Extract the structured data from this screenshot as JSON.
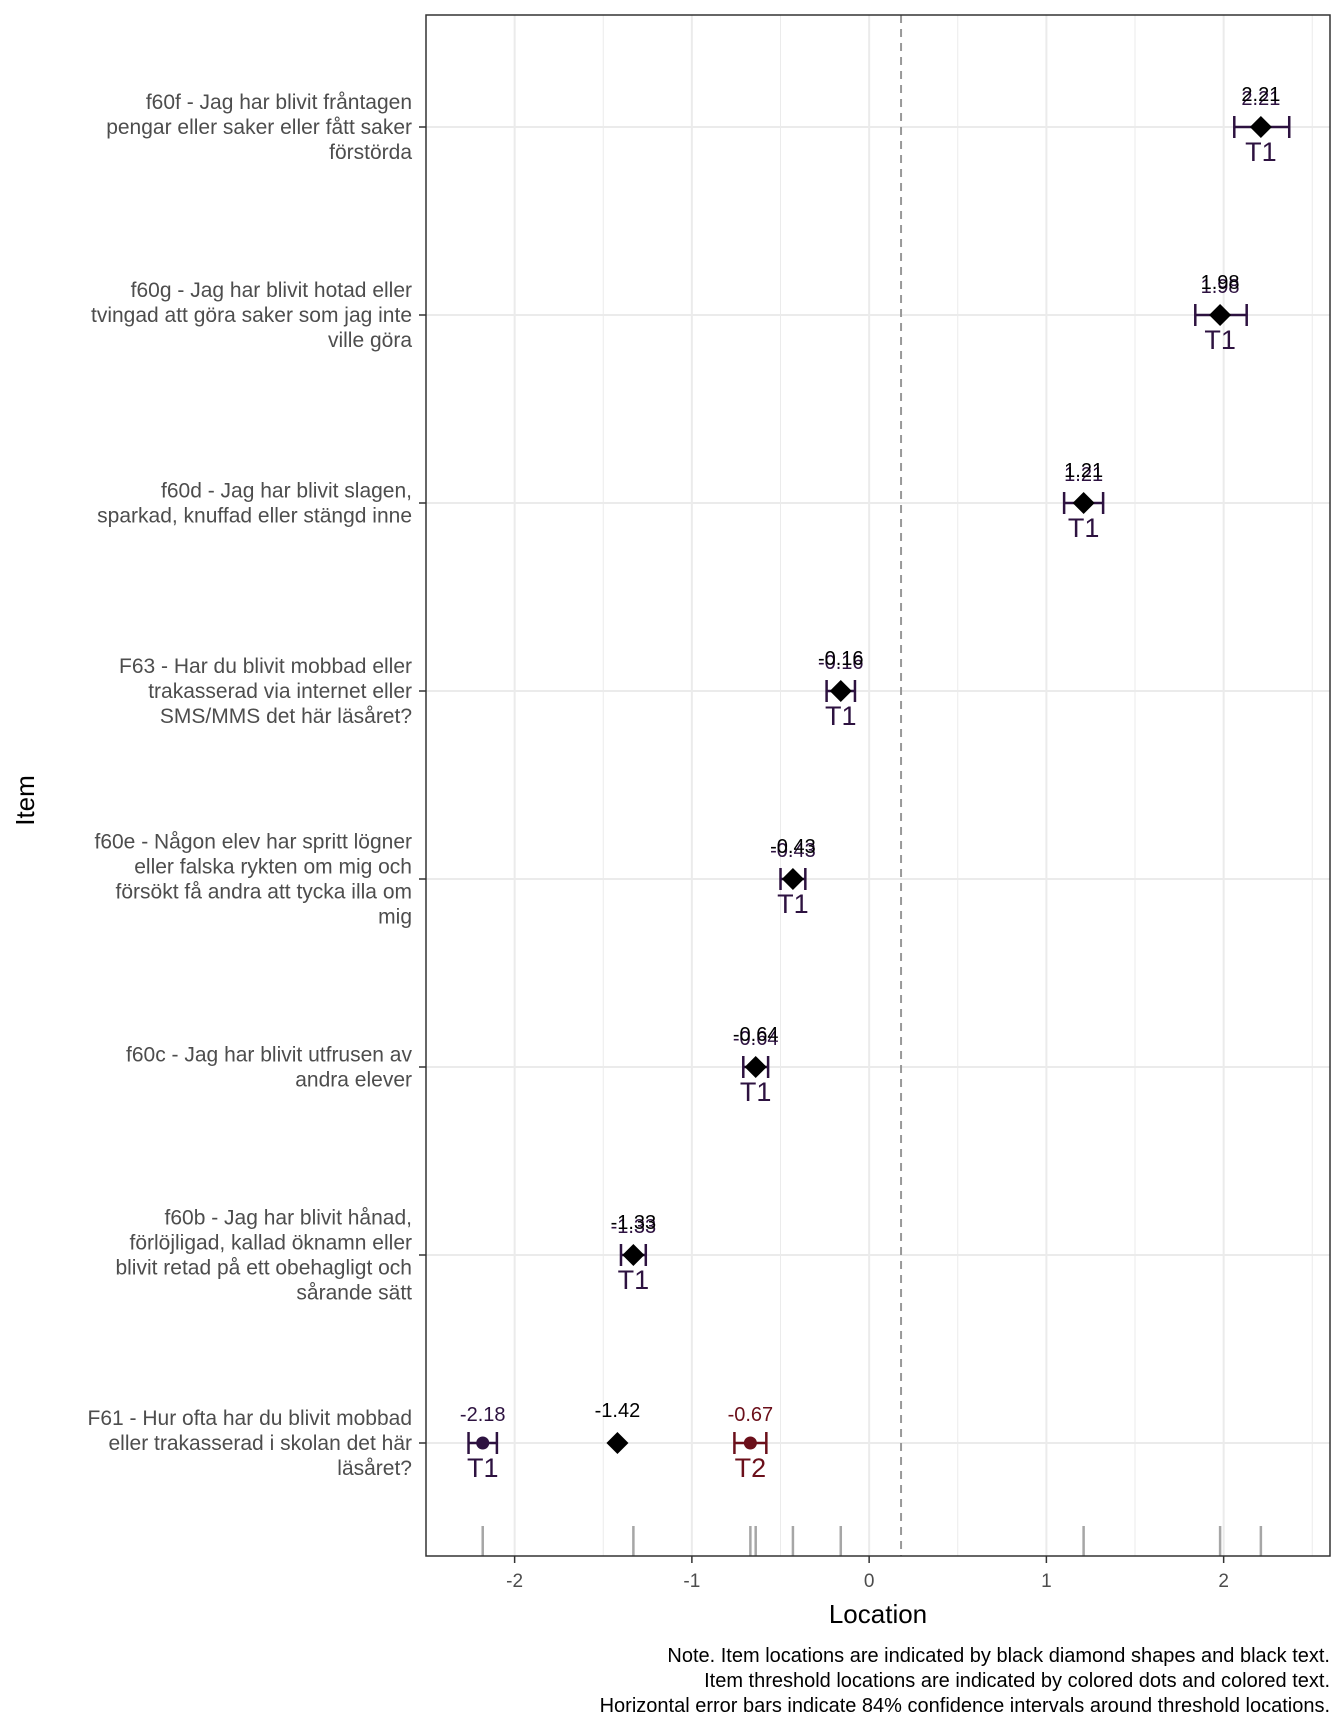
{
  "chart_data": {
    "type": "scatter",
    "xlabel": "Location",
    "ylabel": "Item",
    "xlim": [
      -2.5,
      2.6
    ],
    "x_ticks": [
      -2,
      -1,
      0,
      1,
      2
    ],
    "x_tick_labels": [
      "-2",
      "-1",
      "0",
      "1",
      "2"
    ],
    "grid": true,
    "reference_line": 0.18,
    "colors": {
      "item": "#000000",
      "threshold_T1": "#2d1240",
      "threshold_T2": "#6b0f1a",
      "grid": "#ebebeb",
      "rug": "#a6a6a6",
      "reference": "#999999"
    },
    "items": [
      {
        "label_lines": [
          "f60f - Jag har blivit fråntagen",
          "pengar eller saker eller fått saker",
          "förstörda"
        ],
        "location": 2.21,
        "location_label": "2.21",
        "thresholds": [
          {
            "name": "T1",
            "value": 2.21,
            "value_label": "2.21",
            "ci": [
              2.06,
              2.37
            ]
          }
        ]
      },
      {
        "label_lines": [
          "f60g - Jag har blivit hotad eller",
          "tvingad att göra saker som jag inte",
          "ville göra"
        ],
        "location": 1.98,
        "location_label": "1.98",
        "thresholds": [
          {
            "name": "T1",
            "value": 1.98,
            "value_label": "1.98",
            "ci": [
              1.84,
              2.13
            ]
          }
        ]
      },
      {
        "label_lines": [
          "f60d - Jag har blivit slagen,",
          "sparkad, knuffad eller stängd inne"
        ],
        "location": 1.21,
        "location_label": "1.21",
        "thresholds": [
          {
            "name": "T1",
            "value": 1.21,
            "value_label": "1.21",
            "ci": [
              1.1,
              1.32
            ]
          }
        ]
      },
      {
        "label_lines": [
          "F63 - Har du blivit mobbad eller",
          "trakasserad via internet eller",
          "SMS/MMS det här läsåret?"
        ],
        "location": -0.16,
        "location_label": "-0.16",
        "thresholds": [
          {
            "name": "T1",
            "value": -0.16,
            "value_label": "-0.16",
            "ci": [
              -0.24,
              -0.08
            ]
          }
        ]
      },
      {
        "label_lines": [
          "f60e - Någon elev har spritt lögner",
          "eller falska rykten om mig och",
          "försökt få andra att tycka illa om",
          "mig"
        ],
        "location": -0.43,
        "location_label": "-0.43",
        "thresholds": [
          {
            "name": "T1",
            "value": -0.43,
            "value_label": "-0.43",
            "ci": [
              -0.5,
              -0.36
            ]
          }
        ]
      },
      {
        "label_lines": [
          "f60c - Jag har blivit utfrusen av",
          "andra elever"
        ],
        "location": -0.64,
        "location_label": "-0.64",
        "thresholds": [
          {
            "name": "T1",
            "value": -0.64,
            "value_label": "-0.64",
            "ci": [
              -0.71,
              -0.57
            ]
          }
        ]
      },
      {
        "label_lines": [
          "f60b - Jag har blivit hånad,",
          "förlöjligad, kallad öknamn eller",
          "blivit retad på ett obehagligt och",
          "sårande sätt"
        ],
        "location": -1.33,
        "location_label": "-1.33",
        "thresholds": [
          {
            "name": "T1",
            "value": -1.33,
            "value_label": "-1.33",
            "ci": [
              -1.4,
              -1.26
            ]
          }
        ]
      },
      {
        "label_lines": [
          "F61 - Hur ofta har du blivit mobbad",
          "eller trakasserad i skolan det här",
          "läsåret?"
        ],
        "location": -1.42,
        "location_label": "-1.42",
        "thresholds": [
          {
            "name": "T1",
            "value": -2.18,
            "value_label": "-2.18",
            "ci": [
              -2.26,
              -2.1
            ]
          },
          {
            "name": "T2",
            "value": -0.67,
            "value_label": "-0.67",
            "ci": [
              -0.76,
              -0.58
            ]
          }
        ]
      }
    ],
    "rug": [
      -2.18,
      -1.33,
      -0.67,
      -0.64,
      -0.43,
      -0.16,
      1.21,
      1.98,
      2.21
    ],
    "note_lines": [
      "Note. Item locations are indicated by black diamond shapes and black text.",
      "Item threshold locations are indicated by colored dots and colored text.",
      "Horizontal error bars indicate 84% confidence intervals around threshold locations."
    ]
  }
}
